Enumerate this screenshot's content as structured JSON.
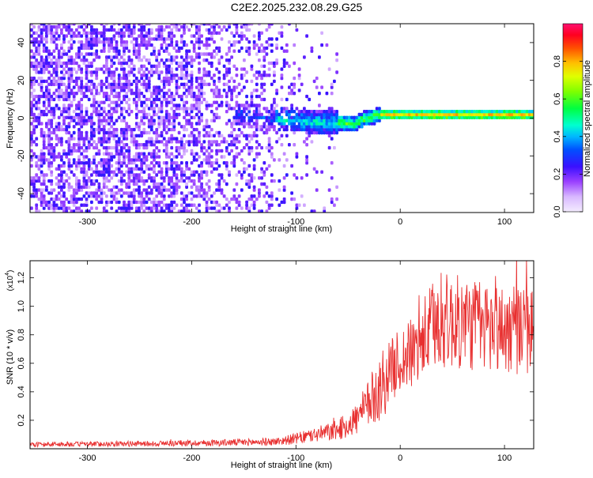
{
  "title": "C2E2.2025.232.08.29.G25",
  "chart_data": [
    {
      "type": "heatmap",
      "xlabel": "Height of straight line (km)",
      "ylabel": "Frequency (Hz)",
      "xlim": [
        -355,
        128
      ],
      "ylim": [
        -50,
        50
      ],
      "x_ticks": [
        -300,
        -200,
        -100,
        0,
        100
      ],
      "x_tick_labels": [
        "-300",
        "-200",
        "-100",
        "0",
        "100"
      ],
      "y_ticks": [
        -40,
        -20,
        0,
        20,
        40
      ],
      "y_tick_labels": [
        "-40",
        "-20",
        "0",
        "20",
        "40"
      ],
      "colorbar": {
        "label": "Normalized spectral amplitude",
        "range": [
          0,
          1
        ],
        "ticks": [
          0.0,
          0.2,
          0.4,
          0.6,
          0.8
        ],
        "tick_labels": [
          "0.0",
          "0.2",
          "0.4",
          "0.6",
          "0.8"
        ]
      },
      "signal_trace": {
        "x": [
          -150,
          -120,
          -100,
          -80,
          -60,
          -45,
          -40,
          -30,
          -20,
          0,
          20,
          60,
          100,
          128
        ],
        "y": [
          1,
          -1,
          -2,
          -3,
          -3,
          -4,
          -2,
          0,
          1,
          1,
          1,
          1,
          1,
          1
        ]
      }
    },
    {
      "type": "line",
      "xlabel": "Height of straight line (km)",
      "ylabel": "SNR (10 * v/v)",
      "y_multiplier": "(x10",
      "y_multiplier_exp": "4",
      "y_multiplier_close": ")",
      "xlim": [
        -355,
        128
      ],
      "ylim": [
        0,
        1.32
      ],
      "x_ticks": [
        -300,
        -200,
        -100,
        0,
        100
      ],
      "x_tick_labels": [
        "-300",
        "-200",
        "-100",
        "0",
        "100"
      ],
      "y_ticks": [
        0.2,
        0.4,
        0.6,
        0.8,
        1.0,
        1.2
      ],
      "y_tick_labels": [
        "0.2",
        "0.4",
        "0.6",
        "0.8",
        "1.0",
        "1.2"
      ],
      "series_color": "#e83030",
      "envelope": {
        "x": [
          -355,
          -250,
          -200,
          -150,
          -120,
          -100,
          -80,
          -60,
          -50,
          -40,
          -30,
          -20,
          -10,
          0,
          10,
          20,
          30,
          40,
          60,
          80,
          100,
          128
        ],
        "y": [
          0.03,
          0.035,
          0.04,
          0.045,
          0.05,
          0.07,
          0.1,
          0.13,
          0.17,
          0.22,
          0.32,
          0.42,
          0.55,
          0.62,
          0.66,
          0.74,
          0.85,
          0.9,
          0.88,
          0.86,
          0.84,
          0.82
        ]
      }
    }
  ]
}
